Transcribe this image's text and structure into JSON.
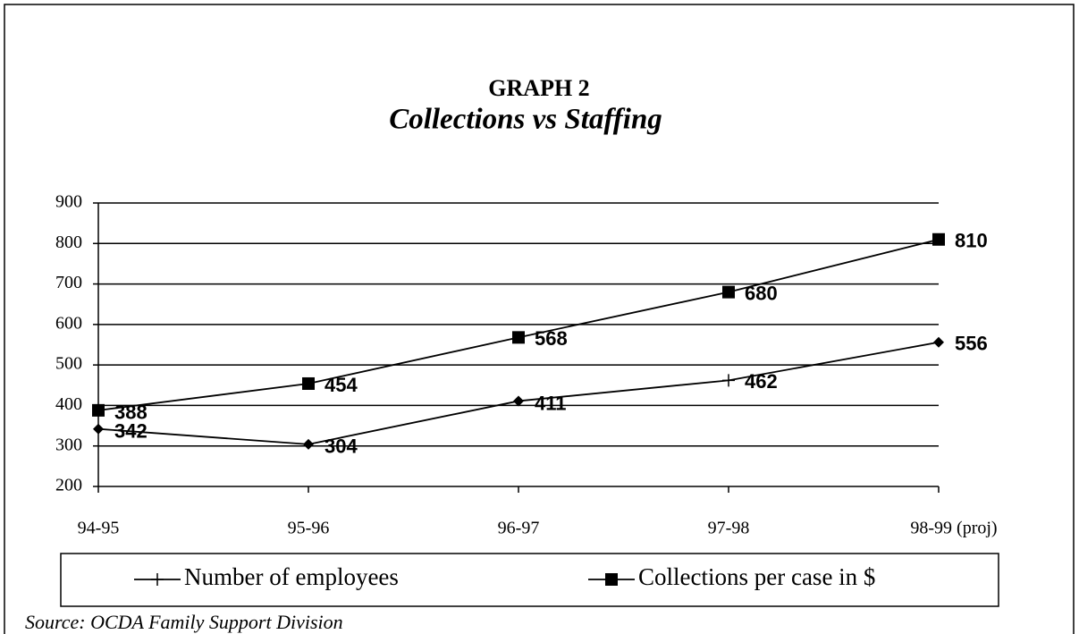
{
  "chart_data": {
    "type": "line",
    "title": "GRAPH 2",
    "subtitle": "Collections vs Staffing",
    "categories": [
      "94-95",
      "95-96",
      "96-97",
      "97-98",
      "98-99 (proj)"
    ],
    "series": [
      {
        "name": "Number of employees",
        "color": "#000000",
        "values": [
          342,
          304,
          411,
          462,
          556
        ]
      },
      {
        "name": "Collections per case in $",
        "color": "#000000",
        "values": [
          388,
          454,
          568,
          680,
          810
        ]
      }
    ],
    "ylim": [
      200,
      900
    ],
    "yticks": [
      200,
      300,
      400,
      500,
      600,
      700,
      800,
      900
    ],
    "grid": true,
    "legend": "bottom",
    "source": "Source: OCDA Family Support Division"
  }
}
